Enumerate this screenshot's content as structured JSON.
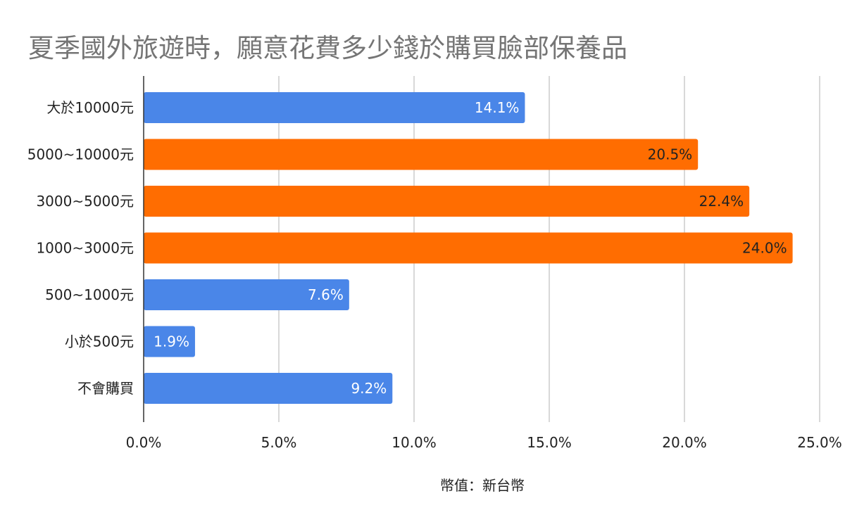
{
  "chart_data": {
    "type": "bar",
    "orientation": "horizontal",
    "title": "夏季國外旅遊時，願意花費多少錢於購買臉部保養品",
    "xlabel": "幣值：新台幣",
    "ylabel": "",
    "categories": [
      "大於10000元",
      "5000~10000元",
      "3000~5000元",
      "1000~3000元",
      "500~1000元",
      "小於500元",
      "不會購買"
    ],
    "values": [
      14.1,
      20.5,
      22.4,
      24.0,
      7.6,
      1.9,
      9.2
    ],
    "value_labels": [
      "14.1%",
      "20.5%",
      "22.4%",
      "24.0%",
      "7.6%",
      "1.9%",
      "9.2%"
    ],
    "bar_colors": [
      "#4a86e8",
      "#ff6d01",
      "#ff6d01",
      "#ff6d01",
      "#4a86e8",
      "#4a86e8",
      "#4a86e8"
    ],
    "label_colors": [
      "#ffffff",
      "#222222",
      "#222222",
      "#222222",
      "#ffffff",
      "#ffffff",
      "#ffffff"
    ],
    "xlim": [
      0,
      25
    ],
    "xticks": [
      0,
      5,
      10,
      15,
      20,
      25
    ],
    "xtick_labels": [
      "0.0%",
      "5.0%",
      "10.0%",
      "15.0%",
      "20.0%",
      "25.0%"
    ],
    "grid": true,
    "legend": "none"
  }
}
